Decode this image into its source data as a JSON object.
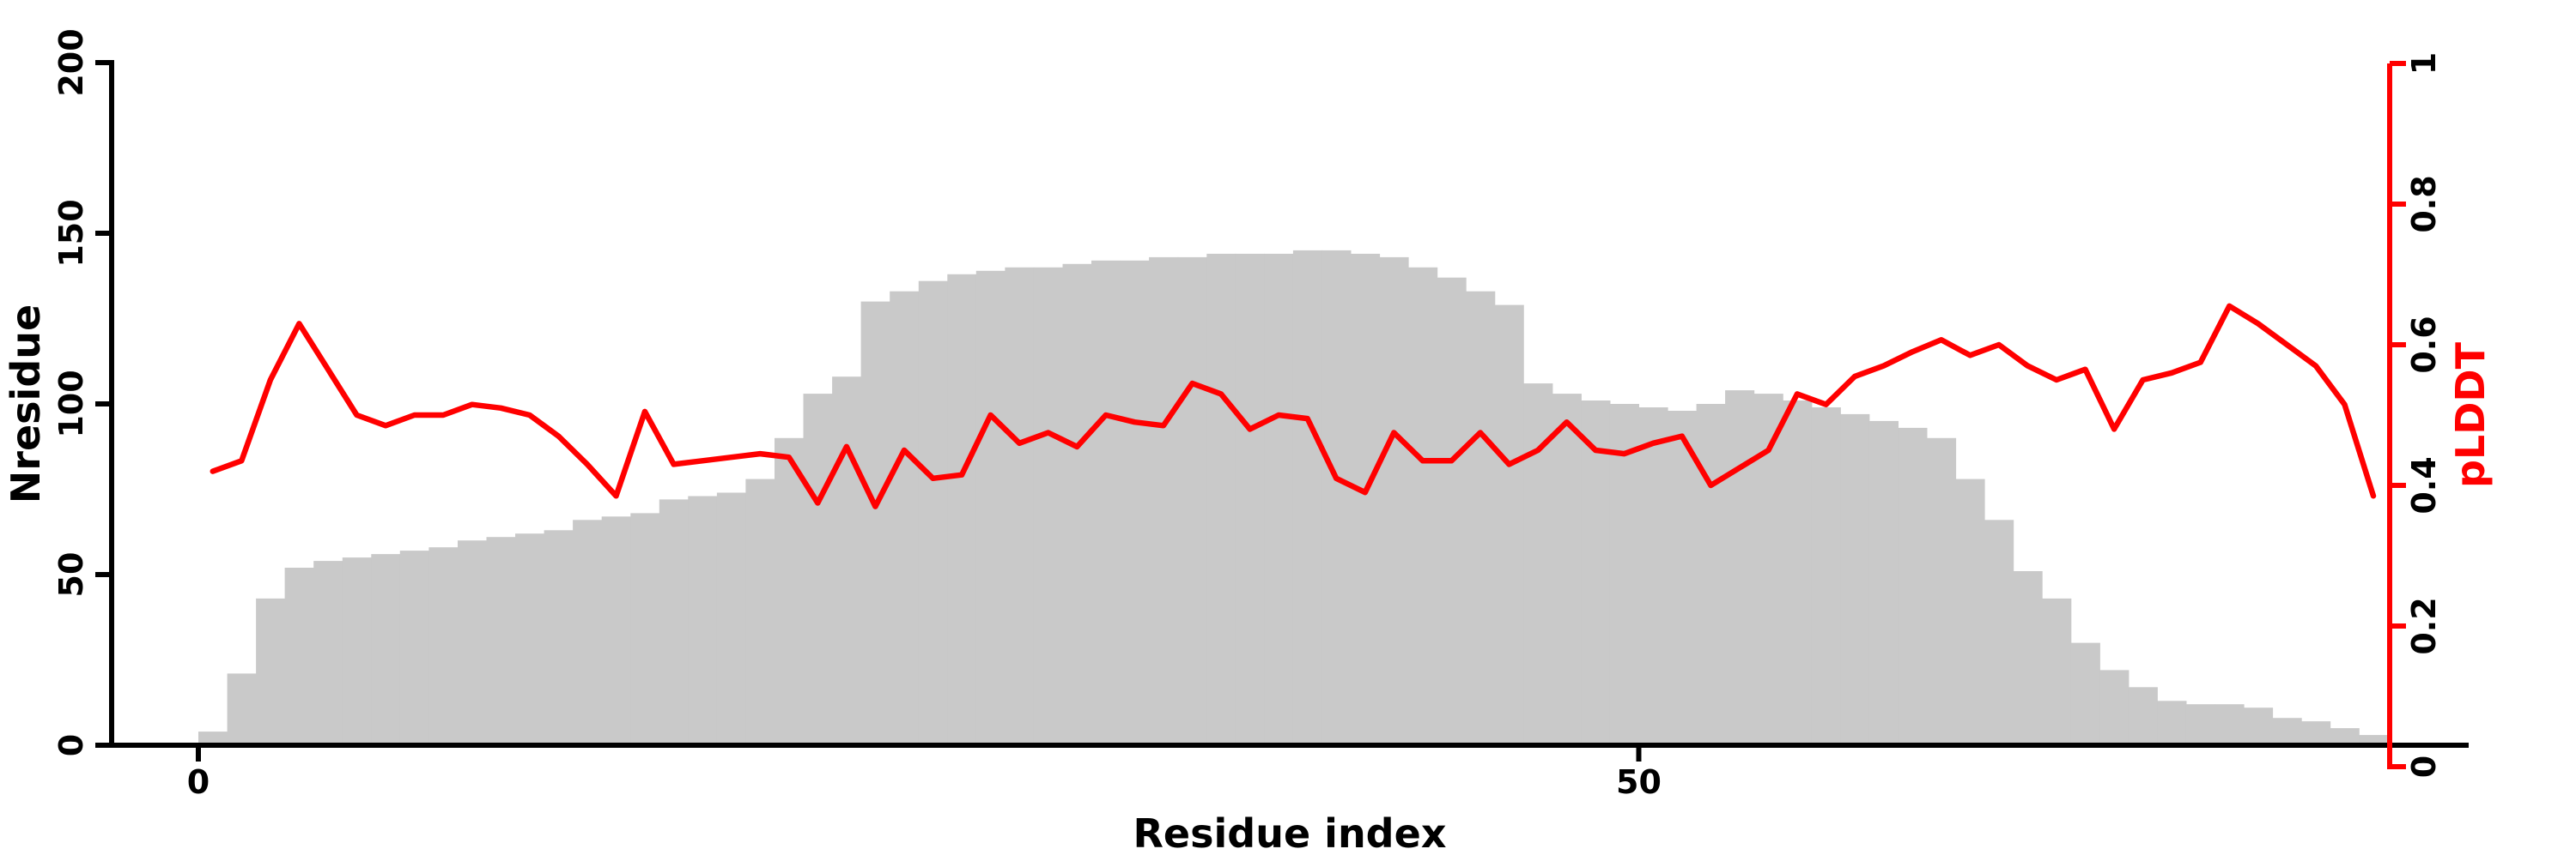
{
  "chart_data": {
    "type": "bar+line",
    "title": "",
    "xlabel": "Residue index",
    "x_axis": {
      "tick_labels": [
        "0",
        "50"
      ],
      "tick_values": [
        0,
        50
      ],
      "xlim": [
        0,
        80
      ]
    },
    "left_axis": {
      "label": "Nresidue",
      "tick_labels": [
        "0",
        "50",
        "100",
        "150",
        "200"
      ],
      "tick_values": [
        0,
        50,
        100,
        150,
        200
      ],
      "lim": [
        0,
        200
      ],
      "color": "#000000"
    },
    "right_axis": {
      "label": "pLDDT",
      "tick_labels": [
        "0",
        "0.2",
        "0.4",
        "0.6",
        "0.8",
        "1"
      ],
      "tick_values": [
        0,
        0.2,
        0.4,
        0.6,
        0.8,
        1
      ],
      "lim": [
        0,
        1
      ],
      "color": "#ff0000"
    },
    "grid": false,
    "background": "#ffffff",
    "series": [
      {
        "name": "Nresidue",
        "type": "bar",
        "axis": "left",
        "color": "#c9c9c9",
        "x_start": 1,
        "values": [
          4,
          21,
          43,
          52,
          54,
          55,
          56,
          57,
          58,
          60,
          61,
          62,
          63,
          66,
          67,
          68,
          72,
          73,
          74,
          78,
          90,
          103,
          108,
          130,
          133,
          136,
          138,
          139,
          140,
          140,
          141,
          142,
          142,
          143,
          143,
          144,
          144,
          144,
          145,
          145,
          144,
          143,
          140,
          137,
          133,
          129,
          106,
          103,
          101,
          100,
          99,
          98,
          100,
          104,
          103,
          101,
          99,
          97,
          95,
          93,
          90,
          78,
          66,
          51,
          43,
          30,
          22,
          17,
          13,
          12,
          12,
          11,
          8,
          7,
          5,
          3
        ]
      },
      {
        "name": "pLDDT",
        "type": "line",
        "axis": "right",
        "color": "#ff0000",
        "x_start": 1,
        "values": [
          0.42,
          0.435,
          0.55,
          0.63,
          0.565,
          0.5,
          0.485,
          0.5,
          0.5,
          0.515,
          0.51,
          0.5,
          0.47,
          0.43,
          0.385,
          0.505,
          0.43,
          0.435,
          0.44,
          0.445,
          0.44,
          0.375,
          0.455,
          0.37,
          0.45,
          0.41,
          0.415,
          0.5,
          0.46,
          0.475,
          0.455,
          0.5,
          0.49,
          0.485,
          0.545,
          0.53,
          0.48,
          0.5,
          0.495,
          0.41,
          0.39,
          0.475,
          0.435,
          0.435,
          0.475,
          0.43,
          0.45,
          0.49,
          0.45,
          0.445,
          0.46,
          0.47,
          0.4,
          0.425,
          0.45,
          0.53,
          0.515,
          0.555,
          0.57,
          0.59,
          0.607,
          0.585,
          0.6,
          0.57,
          0.55,
          0.565,
          0.48,
          0.55,
          0.56,
          0.575,
          0.655,
          0.63,
          0.6,
          0.57,
          0.515,
          0.385
        ]
      }
    ]
  }
}
